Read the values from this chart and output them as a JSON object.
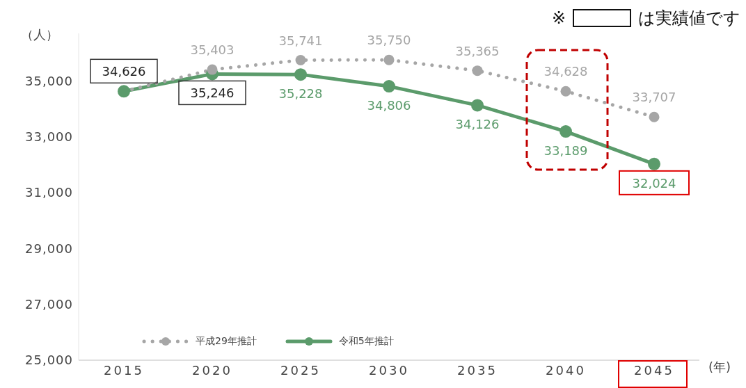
{
  "chart_data": {
    "type": "line",
    "categories": [
      "2015",
      "2020",
      "2025",
      "2030",
      "2035",
      "2040",
      "2045"
    ],
    "series": [
      {
        "name": "平成29年推計",
        "color": "#a6a6a6",
        "line_style": "dotted",
        "values": [
          34626,
          35403,
          35741,
          35750,
          35365,
          34628,
          33707
        ],
        "value_labels": [
          null,
          "35,403",
          "35,741",
          "35,750",
          "35,365",
          "34,628",
          "33,707"
        ]
      },
      {
        "name": "令和5年推計",
        "color": "#5b9b6b",
        "line_style": "solid",
        "values": [
          34626,
          35246,
          35228,
          34806,
          34126,
          33189,
          32024
        ],
        "value_labels": [
          "34,626",
          "35,246",
          "35,228",
          "34,806",
          "34,126",
          "33,189",
          "32,024"
        ]
      }
    ],
    "ylim": [
      25000,
      36700
    ],
    "yticks": [
      {
        "value": 25000,
        "label": "25,000"
      },
      {
        "value": 27000,
        "label": "27,000"
      },
      {
        "value": 29000,
        "label": "29,000"
      },
      {
        "value": 31000,
        "label": "31,000"
      },
      {
        "value": 33000,
        "label": "33,000"
      },
      {
        "value": 35000,
        "label": "35,000"
      }
    ],
    "ylabel": "（人）",
    "xlabel": "(年)",
    "annotations": [
      "※",
      "は実績値です"
    ],
    "marker": "circle",
    "grid": false,
    "legend": "bottom left"
  }
}
